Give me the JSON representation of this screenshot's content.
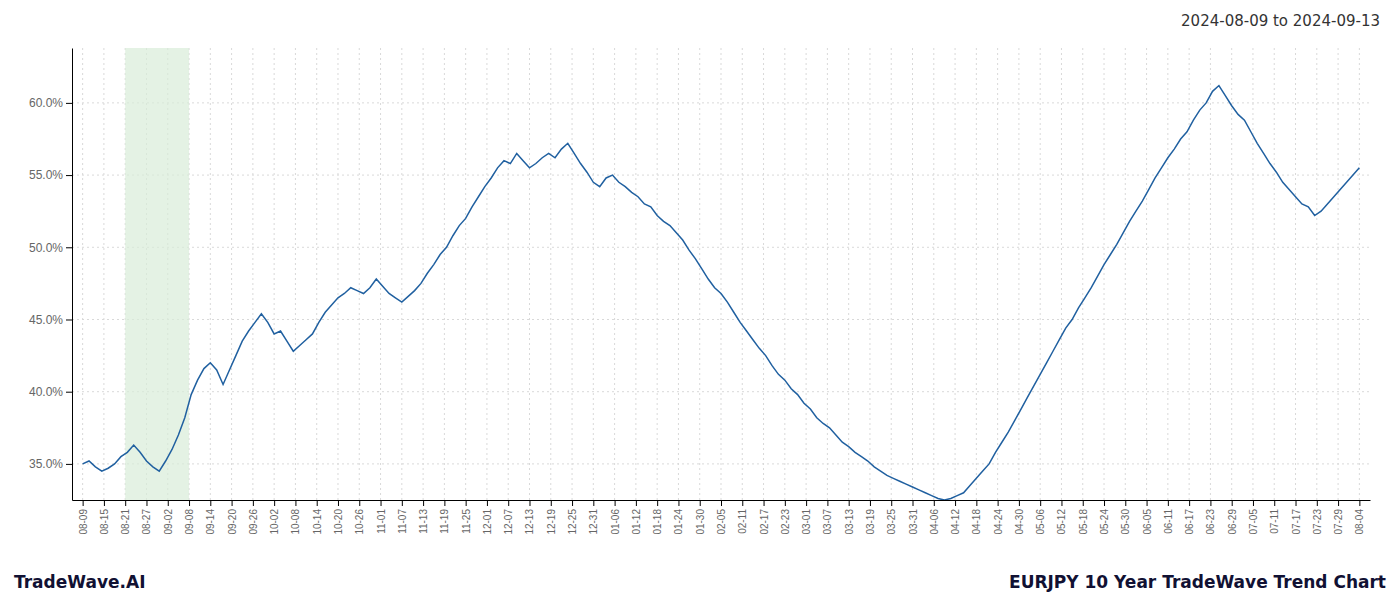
{
  "chart_data": {
    "type": "line",
    "title": "2024-08-09 to 2024-09-13",
    "annotations": [
      "TradeWave.AI",
      "EURJPY 10 Year TradeWave Trend Chart"
    ],
    "color": "#2060a0",
    "grid": true,
    "shade": {
      "x": [
        2,
        5
      ],
      "color": "#d8edd8"
    },
    "xlim": [
      -0.5,
      60.5
    ],
    "xticks": [
      {
        "value": 0,
        "label": "08-09"
      },
      {
        "value": 1,
        "label": "08-15"
      },
      {
        "value": 2,
        "label": "08-21"
      },
      {
        "value": 3,
        "label": "08-27"
      },
      {
        "value": 4,
        "label": "09-02"
      },
      {
        "value": 5,
        "label": "09-08"
      },
      {
        "value": 6,
        "label": "09-14"
      },
      {
        "value": 7,
        "label": "09-20"
      },
      {
        "value": 8,
        "label": "09-26"
      },
      {
        "value": 9,
        "label": "10-02"
      },
      {
        "value": 10,
        "label": "10-08"
      },
      {
        "value": 11,
        "label": "10-14"
      },
      {
        "value": 12,
        "label": "10-20"
      },
      {
        "value": 13,
        "label": "10-26"
      },
      {
        "value": 14,
        "label": "11-01"
      },
      {
        "value": 15,
        "label": "11-07"
      },
      {
        "value": 16,
        "label": "11-13"
      },
      {
        "value": 17,
        "label": "11-19"
      },
      {
        "value": 18,
        "label": "11-25"
      },
      {
        "value": 19,
        "label": "12-01"
      },
      {
        "value": 20,
        "label": "12-07"
      },
      {
        "value": 21,
        "label": "12-13"
      },
      {
        "value": 22,
        "label": "12-19"
      },
      {
        "value": 23,
        "label": "12-25"
      },
      {
        "value": 24,
        "label": "12-31"
      },
      {
        "value": 25,
        "label": "01-06"
      },
      {
        "value": 26,
        "label": "01-12"
      },
      {
        "value": 27,
        "label": "01-18"
      },
      {
        "value": 28,
        "label": "01-24"
      },
      {
        "value": 29,
        "label": "01-30"
      },
      {
        "value": 30,
        "label": "02-05"
      },
      {
        "value": 31,
        "label": "02-11"
      },
      {
        "value": 32,
        "label": "02-17"
      },
      {
        "value": 33,
        "label": "02-23"
      },
      {
        "value": 34,
        "label": "03-01"
      },
      {
        "value": 35,
        "label": "03-07"
      },
      {
        "value": 36,
        "label": "03-13"
      },
      {
        "value": 37,
        "label": "03-19"
      },
      {
        "value": 38,
        "label": "03-25"
      },
      {
        "value": 39,
        "label": "03-31"
      },
      {
        "value": 40,
        "label": "04-06"
      },
      {
        "value": 41,
        "label": "04-12"
      },
      {
        "value": 42,
        "label": "04-18"
      },
      {
        "value": 43,
        "label": "04-24"
      },
      {
        "value": 44,
        "label": "04-30"
      },
      {
        "value": 45,
        "label": "05-06"
      },
      {
        "value": 46,
        "label": "05-12"
      },
      {
        "value": 47,
        "label": "05-18"
      },
      {
        "value": 48,
        "label": "05-24"
      },
      {
        "value": 49,
        "label": "05-30"
      },
      {
        "value": 50,
        "label": "06-05"
      },
      {
        "value": 51,
        "label": "06-11"
      },
      {
        "value": 52,
        "label": "06-17"
      },
      {
        "value": 53,
        "label": "06-23"
      },
      {
        "value": 54,
        "label": "06-29"
      },
      {
        "value": 55,
        "label": "07-05"
      },
      {
        "value": 56,
        "label": "07-11"
      },
      {
        "value": 57,
        "label": "07-17"
      },
      {
        "value": 58,
        "label": "07-23"
      },
      {
        "value": 59,
        "label": "07-29"
      },
      {
        "value": 60,
        "label": "08-04"
      }
    ],
    "ylim": [
      0.325,
      0.638
    ],
    "yticks": [
      {
        "value": 0.35,
        "label": "35.0%"
      },
      {
        "value": 0.4,
        "label": "40.0%"
      },
      {
        "value": 0.45,
        "label": "45.0%"
      },
      {
        "value": 0.5,
        "label": "50.0%"
      },
      {
        "value": 0.55,
        "label": "55.0%"
      },
      {
        "value": 0.6,
        "label": "60.0%"
      }
    ],
    "x": [
      0,
      0.3,
      0.6,
      0.9,
      1.2,
      1.5,
      1.8,
      2.1,
      2.4,
      2.7,
      3,
      3.3,
      3.6,
      3.9,
      4.2,
      4.5,
      4.8,
      5.1,
      5.4,
      5.7,
      6,
      6.3,
      6.6,
      6.9,
      7.2,
      7.5,
      7.8,
      8.1,
      8.4,
      8.7,
      9,
      9.3,
      9.6,
      9.9,
      10.2,
      10.5,
      10.8,
      11.1,
      11.4,
      11.7,
      12,
      12.3,
      12.6,
      12.9,
      13.2,
      13.5,
      13.8,
      14.1,
      14.4,
      14.7,
      15,
      15.3,
      15.6,
      15.9,
      16.2,
      16.5,
      16.8,
      17.1,
      17.4,
      17.7,
      18,
      18.3,
      18.6,
      18.9,
      19.2,
      19.5,
      19.8,
      20.1,
      20.4,
      20.7,
      21,
      21.3,
      21.6,
      21.9,
      22.2,
      22.5,
      22.8,
      23.1,
      23.4,
      23.7,
      24,
      24.3,
      24.6,
      24.9,
      25.2,
      25.5,
      25.8,
      26.1,
      26.4,
      26.7,
      27,
      27.3,
      27.6,
      27.9,
      28.2,
      28.5,
      28.8,
      29.1,
      29.4,
      29.7,
      30,
      30.3,
      30.6,
      30.9,
      31.2,
      31.5,
      31.8,
      32.1,
      32.4,
      32.7,
      33,
      33.3,
      33.6,
      33.9,
      34.2,
      34.5,
      34.8,
      35.1,
      35.4,
      35.7,
      36,
      36.3,
      36.6,
      36.9,
      37.2,
      37.5,
      37.8,
      38.1,
      38.4,
      38.7,
      39,
      39.3,
      39.6,
      39.9,
      40.2,
      40.5,
      40.8,
      41.1,
      41.4,
      41.7,
      42,
      42.3,
      42.6,
      42.9,
      43.2,
      43.5,
      43.8,
      44.1,
      44.4,
      44.7,
      45,
      45.3,
      45.6,
      45.9,
      46.2,
      46.5,
      46.8,
      47.1,
      47.4,
      47.7,
      48,
      48.3,
      48.6,
      48.9,
      49.2,
      49.5,
      49.8,
      50.1,
      50.4,
      50.7,
      51,
      51.3,
      51.6,
      51.9,
      52.2,
      52.5,
      52.8,
      53.1,
      53.4,
      53.7,
      54,
      54.3,
      54.6,
      54.9,
      55.2,
      55.5,
      55.8,
      56.1,
      56.4,
      56.7,
      57,
      57.3,
      57.6,
      57.9,
      58.2,
      58.5,
      58.8,
      59.1,
      59.4,
      59.7,
      60
    ],
    "values": [
      0.35,
      0.352,
      0.348,
      0.345,
      0.347,
      0.35,
      0.355,
      0.358,
      0.363,
      0.358,
      0.352,
      0.348,
      0.345,
      0.352,
      0.36,
      0.37,
      0.382,
      0.398,
      0.408,
      0.416,
      0.42,
      0.415,
      0.405,
      0.415,
      0.425,
      0.435,
      0.442,
      0.448,
      0.454,
      0.448,
      0.44,
      0.442,
      0.435,
      0.428,
      0.432,
      0.436,
      0.44,
      0.448,
      0.455,
      0.46,
      0.465,
      0.468,
      0.472,
      0.47,
      0.468,
      0.472,
      0.478,
      0.473,
      0.468,
      0.465,
      0.462,
      0.466,
      0.47,
      0.475,
      0.482,
      0.488,
      0.495,
      0.5,
      0.508,
      0.515,
      0.52,
      0.528,
      0.535,
      0.542,
      0.548,
      0.555,
      0.56,
      0.558,
      0.565,
      0.56,
      0.555,
      0.558,
      0.562,
      0.565,
      0.562,
      0.568,
      0.572,
      0.565,
      0.558,
      0.552,
      0.545,
      0.542,
      0.548,
      0.55,
      0.545,
      0.542,
      0.538,
      0.535,
      0.53,
      0.528,
      0.522,
      0.518,
      0.515,
      0.51,
      0.505,
      0.498,
      0.492,
      0.485,
      0.478,
      0.472,
      0.468,
      0.462,
      0.455,
      0.448,
      0.442,
      0.436,
      0.43,
      0.425,
      0.418,
      0.412,
      0.408,
      0.402,
      0.398,
      0.392,
      0.388,
      0.382,
      0.378,
      0.375,
      0.37,
      0.365,
      0.362,
      0.358,
      0.355,
      0.352,
      0.348,
      0.345,
      0.342,
      0.34,
      0.338,
      0.336,
      0.334,
      0.332,
      0.33,
      0.328,
      0.326,
      0.325,
      0.326,
      0.328,
      0.33,
      0.335,
      0.34,
      0.345,
      0.35,
      0.358,
      0.365,
      0.372,
      0.38,
      0.388,
      0.396,
      0.404,
      0.412,
      0.42,
      0.428,
      0.436,
      0.444,
      0.45,
      0.458,
      0.465,
      0.472,
      0.48,
      0.488,
      0.495,
      0.502,
      0.51,
      0.518,
      0.525,
      0.532,
      0.54,
      0.548,
      0.555,
      0.562,
      0.568,
      0.575,
      0.58,
      0.588,
      0.595,
      0.6,
      0.608,
      0.612,
      0.605,
      0.598,
      0.592,
      0.588,
      0.58,
      0.572,
      0.565,
      0.558,
      0.552,
      0.545,
      0.54,
      0.535,
      0.53,
      0.528,
      0.522,
      0.525,
      0.53,
      0.535,
      0.54,
      0.545,
      0.55,
      0.555
    ]
  }
}
